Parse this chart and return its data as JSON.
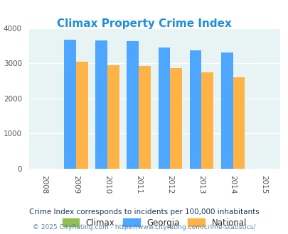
{
  "title": "Climax Property Crime Index",
  "bar_years": [
    2009,
    2010,
    2011,
    2012,
    2013,
    2014
  ],
  "georgia_vals": [
    3670,
    3650,
    3630,
    3440,
    3360,
    3310
  ],
  "national_vals": [
    3040,
    2950,
    2920,
    2860,
    2730,
    2600
  ],
  "climax_vals": [
    0,
    0,
    0,
    0,
    0,
    0
  ],
  "color_georgia": "#4da6ff",
  "color_national": "#ffb347",
  "color_climax": "#90c050",
  "bg_color": "#e8f4f4",
  "ylim": [
    0,
    4000
  ],
  "yticks": [
    0,
    1000,
    2000,
    3000,
    4000
  ],
  "xlim": [
    2007.5,
    2015.5
  ],
  "xticks": [
    2008,
    2009,
    2010,
    2011,
    2012,
    2013,
    2014,
    2015
  ],
  "bar_width": 0.38,
  "title_color": "#1a8fdb",
  "title_fontsize": 11,
  "footnote1": "Crime Index corresponds to incidents per 100,000 inhabitants",
  "footnote2": "© 2025 CityRating.com - https://www.cityrating.com/crime-statistics/",
  "footnote1_color": "#1a3a5c",
  "footnote2_color": "#5588aa",
  "legend_labels": [
    "Climax",
    "Georgia",
    "National"
  ],
  "legend_text_color": "#333333"
}
